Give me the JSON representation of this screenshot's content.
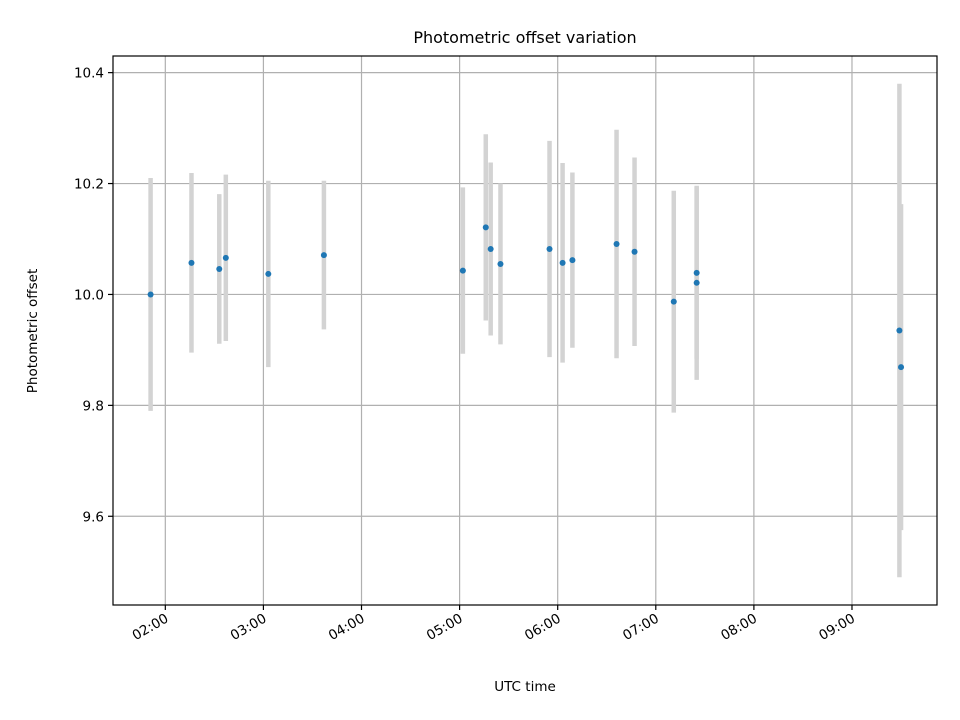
{
  "chart_data": {
    "type": "scatter",
    "title": "Photometric offset variation",
    "xlabel": "UTC time",
    "ylabel": "Photometric offset",
    "x_axis": "time (UTC, HH:MM)",
    "xlim": [
      "01:28",
      "09:52"
    ],
    "ylim": [
      9.44,
      10.43
    ],
    "grid": true,
    "x_ticks": [
      "02:00",
      "03:00",
      "04:00",
      "05:00",
      "06:00",
      "07:00",
      "08:00",
      "09:00"
    ],
    "y_ticks": [
      "9.6",
      "9.8",
      "10.0",
      "10.2",
      "10.4"
    ],
    "points": [
      {
        "t": "01:51",
        "y": 10.0,
        "err": 0.21
      },
      {
        "t": "02:16",
        "y": 10.057,
        "err": 0.162
      },
      {
        "t": "02:33",
        "y": 10.046,
        "err": 0.135
      },
      {
        "t": "02:37",
        "y": 10.066,
        "err": 0.15
      },
      {
        "t": "03:03",
        "y": 10.037,
        "err": 0.168
      },
      {
        "t": "03:37",
        "y": 10.071,
        "err": 0.134
      },
      {
        "t": "05:02",
        "y": 10.043,
        "err": 0.15
      },
      {
        "t": "05:16",
        "y": 10.121,
        "err": 0.168
      },
      {
        "t": "05:19",
        "y": 10.082,
        "err": 0.156
      },
      {
        "t": "05:25",
        "y": 10.055,
        "err": 0.145
      },
      {
        "t": "05:55",
        "y": 10.082,
        "err": 0.195
      },
      {
        "t": "06:03",
        "y": 10.057,
        "err": 0.18
      },
      {
        "t": "06:09",
        "y": 10.062,
        "err": 0.158
      },
      {
        "t": "06:36",
        "y": 10.091,
        "err": 0.206
      },
      {
        "t": "06:47",
        "y": 10.077,
        "err": 0.17
      },
      {
        "t": "07:11",
        "y": 9.987,
        "err": 0.2
      },
      {
        "t": "07:25",
        "y": 10.039,
        "err": 0.155
      },
      {
        "t": "07:25",
        "y": 10.021,
        "err": 0.175
      },
      {
        "t": "09:29",
        "y": 9.935,
        "err": 0.445
      },
      {
        "t": "09:30",
        "y": 9.869,
        "err": 0.294
      }
    ],
    "marker_color": "#1f77b4",
    "errorbar_color": "#d3d3d3",
    "grid_color": "#b0b0b0"
  }
}
